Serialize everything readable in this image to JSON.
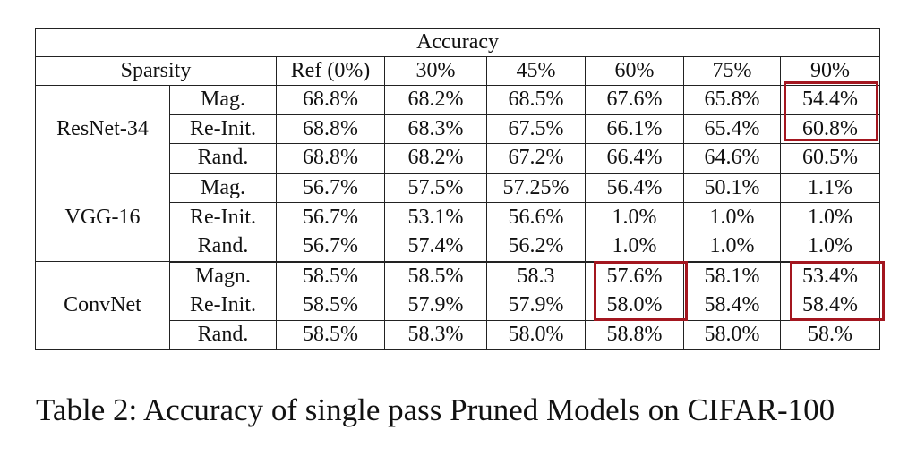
{
  "table": {
    "title": "Accuracy",
    "sparsity_label": "Sparsity",
    "columns": [
      "Ref (0%)",
      "30%",
      "45%",
      "60%",
      "75%",
      "90%"
    ],
    "groups": [
      {
        "model": "ResNet-34",
        "rows": [
          {
            "method": "Mag.",
            "values": [
              "68.8%",
              "68.2%",
              "68.5%",
              "67.6%",
              "65.8%",
              "54.4%"
            ]
          },
          {
            "method": "Re-Init.",
            "values": [
              "68.8%",
              "68.3%",
              "67.5%",
              "66.1%",
              "65.4%",
              "60.8%"
            ]
          },
          {
            "method": "Rand.",
            "values": [
              "68.8%",
              "68.2%",
              "67.2%",
              "66.4%",
              "64.6%",
              "60.5%"
            ]
          }
        ]
      },
      {
        "model": "VGG-16",
        "rows": [
          {
            "method": "Mag.",
            "values": [
              "56.7%",
              "57.5%",
              "57.25%",
              "56.4%",
              "50.1%",
              "1.1%"
            ]
          },
          {
            "method": "Re-Init.",
            "values": [
              "56.7%",
              "53.1%",
              "56.6%",
              "1.0%",
              "1.0%",
              "1.0%"
            ]
          },
          {
            "method": "Rand.",
            "values": [
              "56.7%",
              "57.4%",
              "56.2%",
              "1.0%",
              "1.0%",
              "1.0%"
            ]
          }
        ]
      },
      {
        "model": "ConvNet",
        "rows": [
          {
            "method": "Magn.",
            "values": [
              "58.5%",
              "58.5%",
              "58.3",
              "57.6%",
              "58.1%",
              "53.4%"
            ]
          },
          {
            "method": "Re-Init.",
            "values": [
              "58.5%",
              "57.9%",
              "57.9%",
              "58.0%",
              "58.4%",
              "58.4%"
            ]
          },
          {
            "method": "Rand.",
            "values": [
              "58.5%",
              "58.3%",
              "58.0%",
              "58.8%",
              "58.0%",
              "58.%"
            ]
          }
        ]
      }
    ],
    "highlight_color": "#a3161f"
  },
  "caption": "Table 2: Accuracy of single pass Pruned Models on CIFAR-100"
}
